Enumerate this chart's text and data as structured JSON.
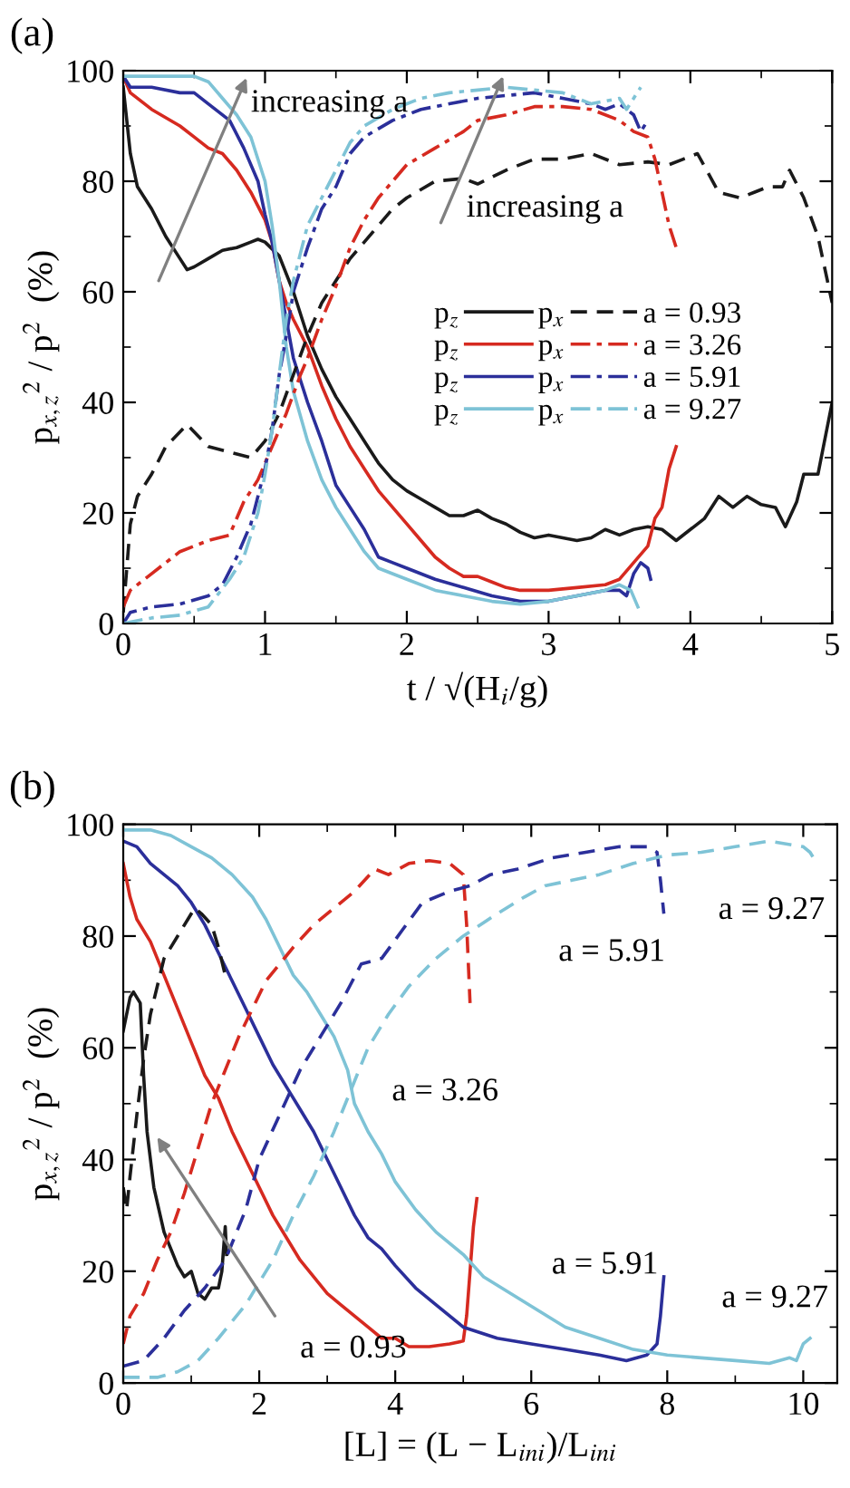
{
  "chart_data": [
    {
      "type": "line",
      "title": "(a)",
      "xlabel": "t / √(H$_{i}$/g)",
      "ylabel": "p$_{x,z}$$^{2}$ / p$^{2}$  (%)",
      "xlim": [
        0,
        5
      ],
      "xticks": [
        0,
        1,
        2,
        3,
        4,
        5
      ],
      "ylim": [
        0,
        100
      ],
      "yticks": [
        0,
        20,
        40,
        60,
        80,
        100
      ],
      "grid": false,
      "legend": "right",
      "marker": "none",
      "annotations": [
        "increasing a",
        "increasing a",
        "a = 0.93",
        "a = 3.26",
        "a = 5.91",
        "a = 9.27"
      ],
      "series": [
        {
          "name": "p$_{z}$",
          "color": "#1a1a1a",
          "line_style": "solid",
          "x": [
            0,
            0.05,
            0.1,
            0.2,
            0.3,
            0.4,
            0.45,
            0.5,
            0.6,
            0.7,
            0.8,
            0.9,
            0.95,
            1.0,
            1.1,
            1.2,
            1.3,
            1.4,
            1.5,
            1.6,
            1.7,
            1.8,
            1.9,
            2.0,
            2.1,
            2.2,
            2.3,
            2.4,
            2.5,
            2.6,
            2.7,
            2.8,
            2.9,
            3.0,
            3.1,
            3.2,
            3.3,
            3.4,
            3.5,
            3.6,
            3.7,
            3.8,
            3.9,
            4.0,
            4.1,
            4.2,
            4.3,
            4.4,
            4.5,
            4.6,
            4.67,
            4.75,
            4.8,
            4.9,
            5.0
          ],
          "values": [
            97,
            85,
            79,
            75,
            70,
            66,
            64,
            64.5,
            66,
            67.5,
            68,
            69,
            69.5,
            69,
            66.5,
            60,
            52,
            46,
            41,
            37,
            33,
            29,
            26,
            24,
            22.5,
            21,
            19.5,
            19.5,
            20.5,
            19,
            18,
            16.5,
            15.5,
            16,
            15.5,
            15,
            15.5,
            17,
            16,
            17,
            17.5,
            17,
            15,
            17,
            19,
            23,
            21,
            23,
            21.5,
            21,
            17.5,
            22,
            27,
            27,
            40
          ]
        },
        {
          "name": "p$_{z}$",
          "color": "#d62a20",
          "line_style": "solid",
          "x": [
            0,
            0.05,
            0.2,
            0.4,
            0.5,
            0.6,
            0.7,
            0.8,
            0.9,
            1.0,
            1.05,
            1.1,
            1.15,
            1.2,
            1.3,
            1.4,
            1.5,
            1.6,
            1.7,
            1.8,
            1.9,
            2.0,
            2.1,
            2.2,
            2.3,
            2.4,
            2.5,
            2.6,
            2.7,
            2.8,
            3.0,
            3.2,
            3.4,
            3.5,
            3.6,
            3.7,
            3.75,
            3.8,
            3.85,
            3.9
          ],
          "values": [
            99,
            96,
            93,
            90,
            88,
            86,
            85,
            82,
            78,
            73,
            69,
            62,
            58,
            55,
            50,
            43,
            37,
            32,
            28,
            24,
            21,
            18,
            15,
            12,
            10,
            8.5,
            8.5,
            7.5,
            6.5,
            6,
            6,
            6.5,
            7,
            8,
            11,
            14,
            19,
            21,
            28,
            32
          ]
        },
        {
          "name": "p$_{z}$",
          "color": "#2b2f9a",
          "line_style": "solid",
          "x": [
            0,
            0.05,
            0.2,
            0.4,
            0.5,
            0.6,
            0.75,
            0.85,
            0.95,
            1.0,
            1.05,
            1.1,
            1.15,
            1.2,
            1.3,
            1.4,
            1.5,
            1.6,
            1.7,
            1.8,
            1.9,
            2.0,
            2.2,
            2.4,
            2.6,
            2.8,
            3.0,
            3.2,
            3.4,
            3.5,
            3.55,
            3.6,
            3.65,
            3.7,
            3.72
          ],
          "values": [
            99,
            97,
            97,
            96,
            96,
            94,
            91,
            86,
            80,
            74,
            69,
            62,
            55,
            48,
            40,
            33,
            25,
            21,
            17,
            12,
            11,
            10,
            8,
            6.5,
            5,
            4,
            4,
            5,
            6,
            6,
            5,
            9,
            11,
            10,
            8
          ]
        },
        {
          "name": "p$_{z}$",
          "color": "#7ec3d6",
          "line_style": "solid",
          "x": [
            0,
            0.2,
            0.5,
            0.6,
            0.7,
            0.8,
            0.85,
            0.9,
            1.0,
            1.05,
            1.1,
            1.15,
            1.2,
            1.3,
            1.4,
            1.5,
            1.6,
            1.7,
            1.8,
            2.0,
            2.2,
            2.4,
            2.6,
            2.8,
            3.0,
            3.2,
            3.4,
            3.5,
            3.58,
            3.63
          ],
          "values": [
            99,
            99,
            99,
            98,
            95,
            92,
            90,
            88,
            80,
            72,
            62,
            50,
            42,
            33,
            26,
            21,
            17,
            13,
            10,
            8,
            6,
            5,
            4,
            3.5,
            4,
            5,
            6,
            7,
            6,
            3
          ]
        },
        {
          "name": "p$_{x}$",
          "color": "#1a1a1a",
          "line_style": "dashed",
          "x": [
            0,
            0.05,
            0.1,
            0.2,
            0.3,
            0.45,
            0.6,
            0.75,
            0.9,
            1.0,
            1.1,
            1.2,
            1.3,
            1.4,
            1.5,
            1.6,
            1.7,
            1.8,
            1.9,
            2.0,
            2.2,
            2.4,
            2.5,
            2.7,
            2.9,
            3.1,
            3.3,
            3.5,
            3.7,
            3.85,
            3.95,
            4.05,
            4.2,
            4.35,
            4.45,
            4.55,
            4.65,
            4.7,
            4.8,
            4.9,
            5.0
          ],
          "values": [
            2,
            18,
            23,
            27,
            32,
            36,
            32,
            31,
            30,
            33,
            38,
            45,
            52,
            58,
            62,
            66,
            69,
            72,
            75,
            77,
            80,
            80.5,
            79.5,
            82,
            84,
            84,
            85,
            83,
            83.5,
            83,
            84,
            85,
            78,
            77,
            78,
            79,
            79,
            82,
            77,
            70,
            58
          ]
        },
        {
          "name": "p$_{x}$",
          "color": "#d62a20",
          "line_style": "dashdot",
          "x": [
            0,
            0.05,
            0.2,
            0.4,
            0.6,
            0.75,
            0.85,
            0.95,
            1.05,
            1.15,
            1.25,
            1.3,
            1.4,
            1.5,
            1.6,
            1.7,
            1.8,
            1.9,
            2.0,
            2.2,
            2.4,
            2.5,
            2.7,
            2.9,
            3.1,
            3.3,
            3.5,
            3.6,
            3.7,
            3.75,
            3.8,
            3.85,
            3.9
          ],
          "values": [
            3,
            6,
            9,
            13,
            15,
            16,
            22,
            26,
            32,
            38,
            45,
            48,
            55,
            61,
            68,
            73,
            77,
            80,
            83,
            86,
            89,
            91,
            92,
            93.5,
            93.5,
            93,
            91,
            89,
            88,
            84,
            78,
            72,
            68
          ]
        },
        {
          "name": "p$_{x}$",
          "color": "#2b2f9a",
          "line_style": "dashdot",
          "x": [
            0,
            0.05,
            0.2,
            0.4,
            0.6,
            0.7,
            0.8,
            0.9,
            1.0,
            1.05,
            1.1,
            1.15,
            1.2,
            1.3,
            1.4,
            1.5,
            1.6,
            1.7,
            1.9,
            2.1,
            2.3,
            2.5,
            2.7,
            2.9,
            3.1,
            3.3,
            3.4,
            3.5,
            3.6,
            3.65,
            3.7
          ],
          "values": [
            0,
            2,
            3,
            3.5,
            5,
            7,
            12,
            18,
            28,
            35,
            45,
            52,
            60,
            68,
            75,
            79,
            85,
            88,
            91,
            93,
            94,
            95,
            95.5,
            96,
            95,
            94,
            93,
            94,
            92,
            89,
            91
          ]
        },
        {
          "name": "p$_{x}$",
          "color": "#7ec3d6",
          "line_style": "dashdot",
          "x": [
            0,
            0.2,
            0.4,
            0.6,
            0.75,
            0.85,
            0.95,
            1.0,
            1.05,
            1.1,
            1.15,
            1.2,
            1.3,
            1.4,
            1.5,
            1.6,
            1.7,
            1.9,
            2.1,
            2.3,
            2.5,
            2.7,
            2.9,
            3.1,
            3.3,
            3.5,
            3.55,
            3.6,
            3.65
          ],
          "values": [
            0,
            1,
            1.5,
            3,
            8,
            12,
            20,
            27,
            35,
            45,
            55,
            62,
            72,
            77,
            82,
            87,
            90,
            93,
            95,
            96,
            96.5,
            97,
            96.5,
            96,
            94,
            95,
            93,
            95,
            97
          ]
        }
      ]
    },
    {
      "type": "line",
      "title": "(b)",
      "xlabel": "[L] = (L − L$_{ini}$)/L$_{ini}$",
      "ylabel": "p$_{x,z}$$^{2}$ / p$^{2}$  (%)",
      "xlim": [
        0,
        10.5
      ],
      "xticks": [
        0,
        2,
        4,
        6,
        8,
        10
      ],
      "ylim": [
        0,
        100
      ],
      "yticks": [
        0,
        20,
        40,
        60,
        80,
        100
      ],
      "grid": false,
      "marker": "none",
      "annotations": [
        {
          "text": "a = 0.93",
          "x": 0.5,
          "y": 44
        },
        "a = 3.26",
        "a = 5.91",
        "a = 9.27",
        "a = 5.91",
        "a = 9.27"
      ],
      "series": [
        {
          "color": "#1a1a1a",
          "line_style": "solid",
          "x": [
            0,
            0.1,
            0.15,
            0.25,
            0.3,
            0.35,
            0.45,
            0.6,
            0.7,
            0.8,
            0.9,
            1.0,
            1.1,
            1.2,
            1.3,
            1.4,
            1.45,
            1.5,
            1.52
          ],
          "values": [
            63,
            69,
            70,
            68,
            55,
            45,
            35,
            27,
            24,
            21,
            19,
            20,
            16,
            15,
            17,
            17,
            20,
            28,
            23
          ]
        },
        {
          "color": "#d62a20",
          "line_style": "solid",
          "x": [
            0,
            0.1,
            0.2,
            0.4,
            0.6,
            0.8,
            1.0,
            1.2,
            1.4,
            1.6,
            1.8,
            2.0,
            2.2,
            2.4,
            2.6,
            2.8,
            3.0,
            3.2,
            3.4,
            3.6,
            3.8,
            4.0,
            4.2,
            4.5,
            4.8,
            5.0,
            5.05,
            5.1,
            5.15,
            5.2
          ],
          "values": [
            93,
            87,
            83,
            79,
            73,
            67,
            61,
            55,
            51,
            45,
            40,
            35,
            30,
            26,
            22,
            19,
            16,
            14,
            12,
            10,
            8,
            8,
            6.5,
            6.5,
            7,
            7.5,
            12,
            20,
            28,
            33
          ]
        },
        {
          "color": "#2b2f9a",
          "line_style": "solid",
          "x": [
            0,
            0.2,
            0.4,
            0.6,
            0.8,
            1.0,
            1.2,
            1.4,
            1.6,
            1.8,
            2.0,
            2.2,
            2.4,
            2.6,
            2.8,
            3.0,
            3.2,
            3.4,
            3.6,
            3.8,
            4.0,
            4.3,
            4.6,
            5.0,
            5.5,
            6.0,
            6.5,
            7.0,
            7.4,
            7.7,
            7.85,
            7.9,
            7.95
          ],
          "values": [
            97,
            96,
            93,
            91,
            89,
            86,
            82,
            77,
            72,
            67,
            62,
            57,
            53,
            49,
            45,
            40,
            35,
            30,
            26,
            24,
            21,
            17,
            14,
            10,
            8,
            7,
            6,
            5,
            4,
            5,
            7,
            12,
            19
          ]
        },
        {
          "color": "#7ec3d6",
          "line_style": "solid",
          "x": [
            0,
            0.4,
            0.7,
            1.0,
            1.3,
            1.6,
            1.9,
            2.1,
            2.3,
            2.5,
            2.7,
            2.9,
            3.1,
            3.3,
            3.4,
            3.6,
            3.8,
            4.0,
            4.3,
            4.6,
            5.0,
            5.3,
            5.7,
            6.1,
            6.5,
            7.0,
            7.5,
            8.0,
            8.5,
            9.0,
            9.5,
            9.8,
            9.9,
            10.0,
            10.1
          ],
          "values": [
            99,
            99,
            98,
            96,
            94,
            91,
            87,
            83,
            78,
            73,
            70,
            66,
            62,
            56,
            50,
            45,
            41,
            36,
            31,
            27,
            23,
            19,
            16,
            13,
            10,
            8,
            6,
            5,
            4.5,
            4,
            3.5,
            4.5,
            4,
            7,
            8
          ]
        },
        {
          "color": "#1a1a1a",
          "line_style": "dashed",
          "x": [
            0,
            0.05,
            0.1,
            0.2,
            0.3,
            0.4,
            0.6,
            0.8,
            0.95,
            1.05,
            1.15,
            1.3,
            1.4,
            1.5
          ],
          "values": [
            35,
            31,
            37,
            48,
            58,
            66,
            76,
            80,
            83,
            85,
            84,
            82,
            78,
            73
          ]
        },
        {
          "color": "#d62a20",
          "line_style": "dashed",
          "x": [
            0,
            0.1,
            0.3,
            0.5,
            0.7,
            0.9,
            1.1,
            1.3,
            1.5,
            1.7,
            1.9,
            2.1,
            2.3,
            2.5,
            2.8,
            3.1,
            3.4,
            3.7,
            3.9,
            4.2,
            4.5,
            4.8,
            5.0,
            5.05,
            5.1
          ],
          "values": [
            7,
            12,
            16,
            22,
            27,
            34,
            42,
            50,
            56,
            62,
            67,
            72,
            75,
            78,
            82,
            85,
            88,
            92,
            91,
            93,
            93.5,
            93,
            91,
            82,
            68
          ]
        },
        {
          "color": "#2b2f9a",
          "line_style": "dashed",
          "x": [
            0,
            0.3,
            0.6,
            0.9,
            1.2,
            1.5,
            1.8,
            2.0,
            2.3,
            2.6,
            2.9,
            3.2,
            3.5,
            3.8,
            4.1,
            4.4,
            4.8,
            5.1,
            5.4,
            5.8,
            6.3,
            6.8,
            7.3,
            7.7,
            7.85,
            7.9,
            7.95
          ],
          "values": [
            3,
            4,
            8,
            13,
            17,
            22,
            31,
            40,
            48,
            56,
            62,
            68,
            75,
            76,
            81,
            86,
            88,
            89,
            91,
            92,
            94,
            95,
            96,
            96,
            95,
            90,
            84
          ]
        },
        {
          "color": "#7ec3d6",
          "line_style": "dashed",
          "x": [
            0,
            0.5,
            0.8,
            1.1,
            1.4,
            1.8,
            2.2,
            2.5,
            2.8,
            3.1,
            3.3,
            3.6,
            3.9,
            4.2,
            4.6,
            5.0,
            5.5,
            5.9,
            6.2,
            6.6,
            7.0,
            7.5,
            8.0,
            8.5,
            9.0,
            9.5,
            10.0,
            10.1,
            10.15
          ],
          "values": [
            1,
            1,
            2,
            4,
            8,
            14,
            22,
            30,
            37,
            45,
            51,
            60,
            66,
            71,
            76,
            80,
            84,
            87,
            89,
            90,
            91,
            93,
            94.5,
            95,
            96,
            97,
            96,
            95,
            94
          ]
        }
      ]
    }
  ]
}
